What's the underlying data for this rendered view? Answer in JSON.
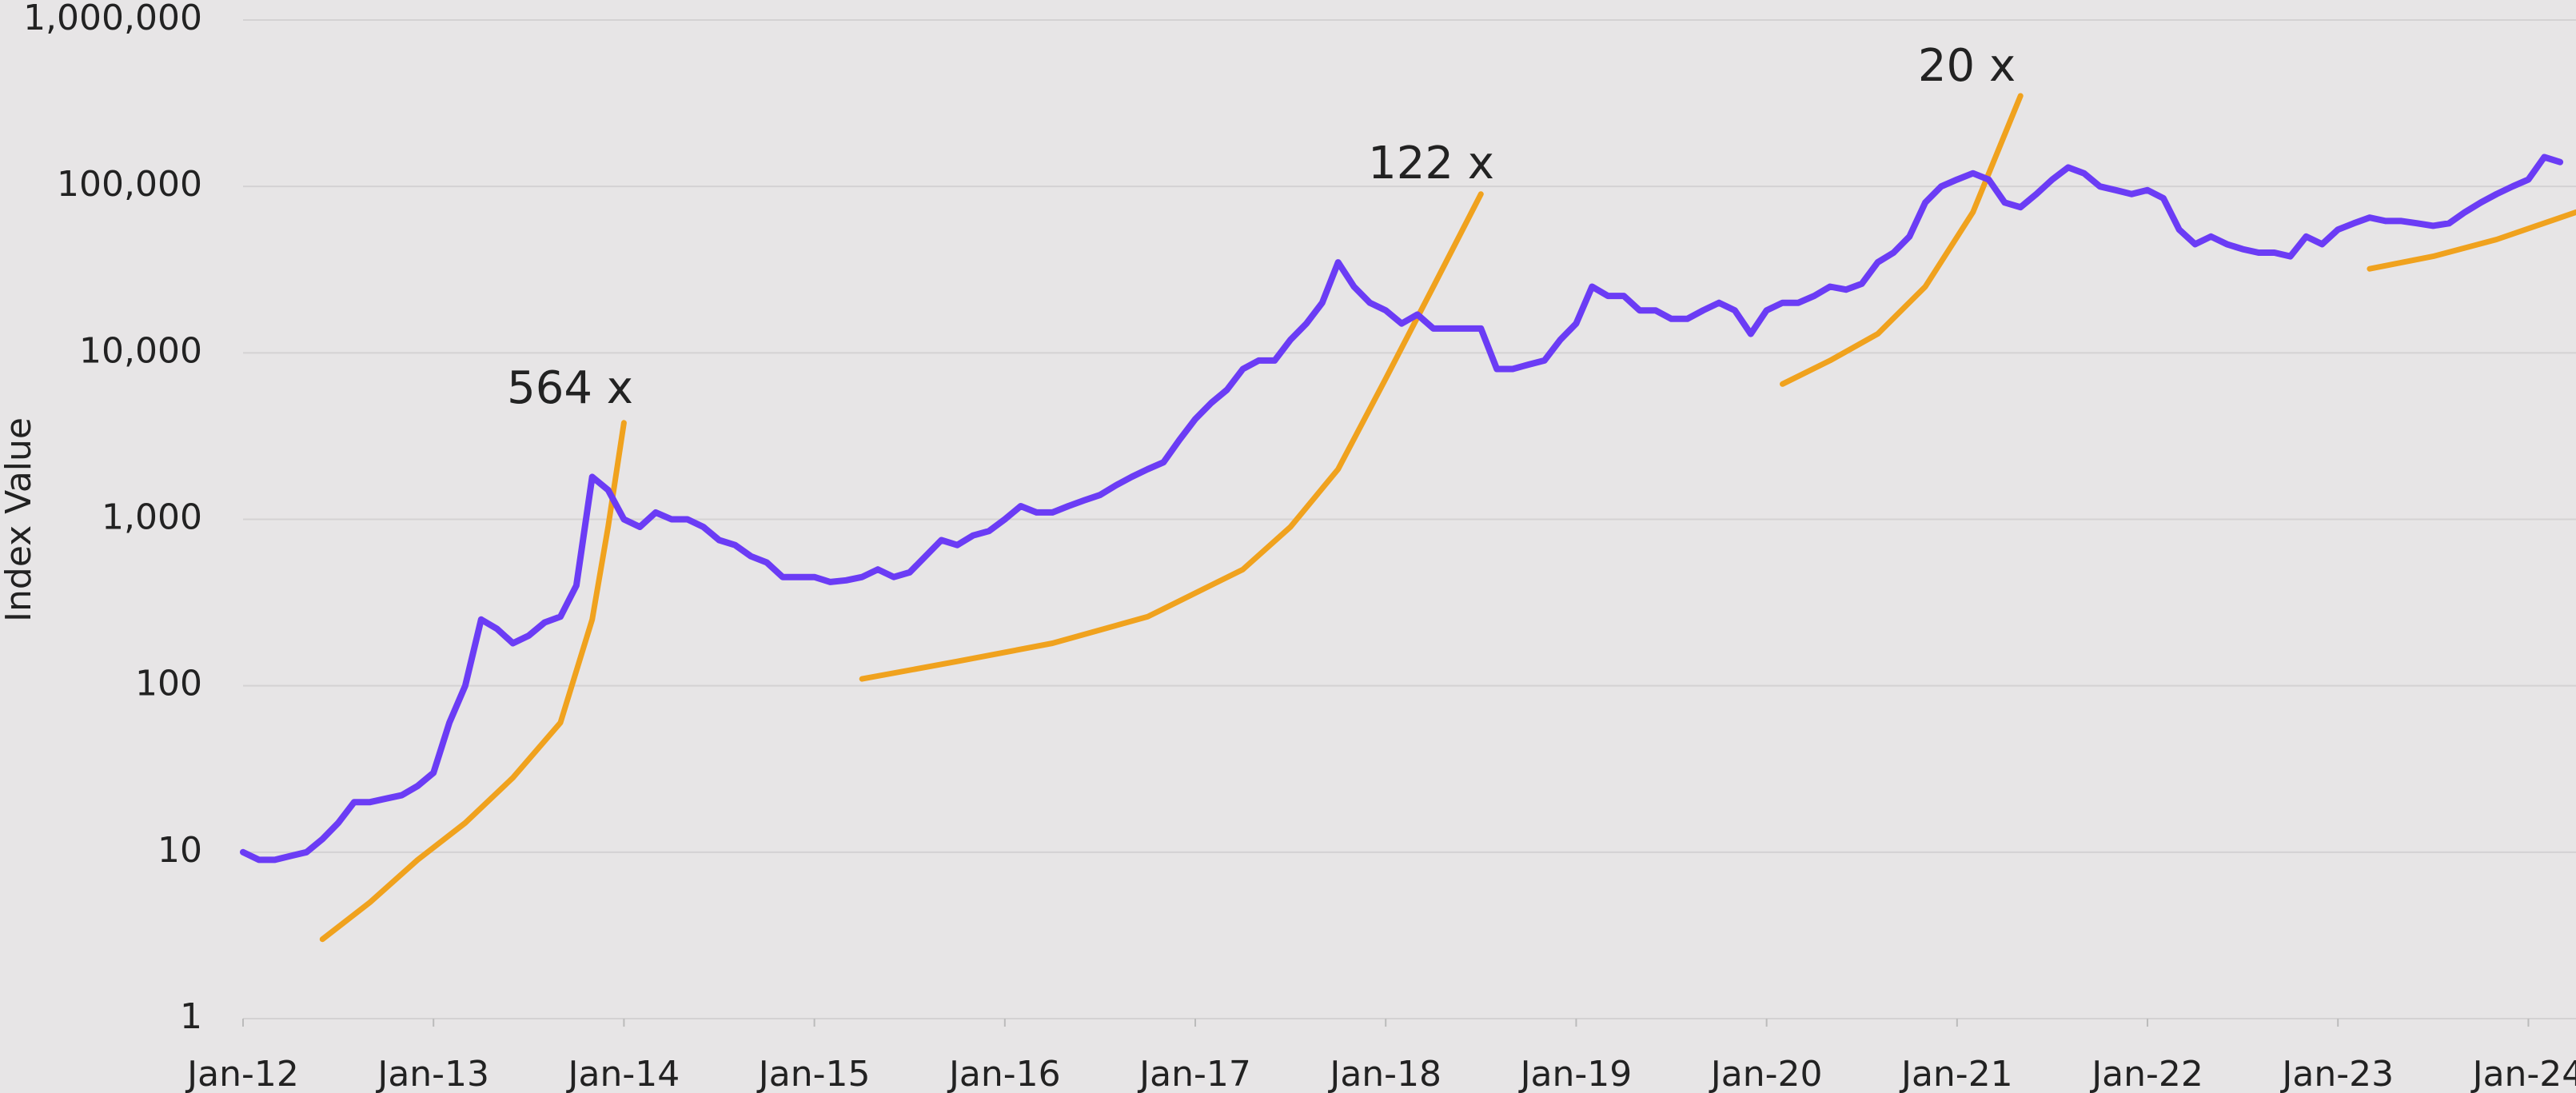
{
  "chart_data": {
    "type": "line",
    "y_label": "Index Value",
    "yscale": "log",
    "grid": true,
    "ylim": [
      1,
      1000000
    ],
    "yticks": [
      1,
      10,
      100,
      {
        "value": 1000,
        "label": "1,000"
      },
      {
        "value": 10000,
        "label": "10,000"
      },
      {
        "value": 100000,
        "label": "100,000"
      },
      {
        "value": 1000000,
        "label": "1,000,000"
      }
    ],
    "xlim": [
      "2012-01",
      "2024-04"
    ],
    "xticks": [
      {
        "value": "2012-01",
        "label": "Jan-12"
      },
      {
        "value": "2013-01",
        "label": "Jan-13"
      },
      {
        "value": "2014-01",
        "label": "Jan-14"
      },
      {
        "value": "2015-01",
        "label": "Jan-15"
      },
      {
        "value": "2016-01",
        "label": "Jan-16"
      },
      {
        "value": "2017-01",
        "label": "Jan-17"
      },
      {
        "value": "2018-01",
        "label": "Jan-18"
      },
      {
        "value": "2019-01",
        "label": "Jan-19"
      },
      {
        "value": "2020-01",
        "label": "Jan-20"
      },
      {
        "value": "2021-01",
        "label": "Jan-21"
      },
      {
        "value": "2022-01",
        "label": "Jan-22"
      },
      {
        "value": "2023-01",
        "label": "Jan-23"
      },
      {
        "value": "2024-01",
        "label": "Jan-24"
      }
    ],
    "annotations": [
      "564 x",
      "122 x",
      "20 x"
    ],
    "series": [
      {
        "color": "#6b3cf5",
        "x": [
          "2012-01",
          "2012-02",
          "2012-03",
          "2012-04",
          "2012-05",
          "2012-06",
          "2012-07",
          "2012-08",
          "2012-09",
          "2012-10",
          "2012-11",
          "2012-12",
          "2013-01",
          "2013-02",
          "2013-03",
          "2013-04",
          "2013-05",
          "2013-06",
          "2013-07",
          "2013-08",
          "2013-09",
          "2013-10",
          "2013-11",
          "2013-12",
          "2014-01",
          "2014-02",
          "2014-03",
          "2014-04",
          "2014-05",
          "2014-06",
          "2014-07",
          "2014-08",
          "2014-09",
          "2014-10",
          "2014-11",
          "2014-12",
          "2015-01",
          "2015-02",
          "2015-03",
          "2015-04",
          "2015-05",
          "2015-06",
          "2015-07",
          "2015-08",
          "2015-09",
          "2015-10",
          "2015-11",
          "2015-12",
          "2016-01",
          "2016-02",
          "2016-03",
          "2016-04",
          "2016-05",
          "2016-06",
          "2016-07",
          "2016-08",
          "2016-09",
          "2016-10",
          "2016-11",
          "2016-12",
          "2017-01",
          "2017-02",
          "2017-03",
          "2017-04",
          "2017-05",
          "2017-06",
          "2017-07",
          "2017-08",
          "2017-09",
          "2017-10",
          "2017-11",
          "2017-12",
          "2018-01",
          "2018-02",
          "2018-03",
          "2018-04",
          "2018-05",
          "2018-06",
          "2018-07",
          "2018-08",
          "2018-09",
          "2018-10",
          "2018-11",
          "2018-12",
          "2019-01",
          "2019-02",
          "2019-03",
          "2019-04",
          "2019-05",
          "2019-06",
          "2019-07",
          "2019-08",
          "2019-09",
          "2019-10",
          "2019-11",
          "2019-12",
          "2020-01",
          "2020-02",
          "2020-03",
          "2020-04",
          "2020-05",
          "2020-06",
          "2020-07",
          "2020-08",
          "2020-09",
          "2020-10",
          "2020-11",
          "2020-12",
          "2021-01",
          "2021-02",
          "2021-03",
          "2021-04",
          "2021-05",
          "2021-06",
          "2021-07",
          "2021-08",
          "2021-09",
          "2021-10",
          "2021-11",
          "2021-12",
          "2022-01",
          "2022-02",
          "2022-03",
          "2022-04",
          "2022-05",
          "2022-06",
          "2022-07",
          "2022-08",
          "2022-09",
          "2022-10",
          "2022-11",
          "2022-12",
          "2023-01",
          "2023-02",
          "2023-03",
          "2023-04",
          "2023-05",
          "2023-06",
          "2023-07",
          "2023-08",
          "2023-09",
          "2023-10",
          "2023-11",
          "2023-12",
          "2024-01",
          "2024-02",
          "2024-03"
        ],
        "values": [
          10,
          9,
          9,
          9.5,
          10,
          12,
          15,
          20,
          20,
          21,
          22,
          25,
          30,
          60,
          100,
          250,
          220,
          180,
          200,
          240,
          260,
          400,
          1800,
          1500,
          1000,
          900,
          1100,
          1000,
          1000,
          900,
          750,
          700,
          600,
          550,
          450,
          450,
          450,
          420,
          430,
          450,
          500,
          450,
          480,
          600,
          750,
          700,
          800,
          850,
          1000,
          1200,
          1100,
          1100,
          1200,
          1300,
          1400,
          1600,
          1800,
          2000,
          2200,
          3000,
          4000,
          5000,
          6000,
          8000,
          9000,
          9000,
          12000,
          15000,
          20000,
          35000,
          25000,
          20000,
          18000,
          15000,
          17000,
          14000,
          14000,
          14000,
          14000,
          8000,
          8000,
          8500,
          9000,
          12000,
          15000,
          25000,
          22000,
          22000,
          18000,
          18000,
          16000,
          16000,
          18000,
          20000,
          18000,
          13000,
          18000,
          20000,
          20000,
          22000,
          25000,
          24000,
          26000,
          35000,
          40000,
          50000,
          80000,
          100000,
          110000,
          120000,
          110000,
          80000,
          75000,
          90000,
          110000,
          130000,
          120000,
          100000,
          95000,
          90000,
          95000,
          85000,
          55000,
          45000,
          50000,
          45000,
          42000,
          40000,
          40000,
          38000,
          50000,
          45000,
          55000,
          60000,
          65000,
          62000,
          62000,
          60000,
          58000,
          60000,
          70000,
          80000,
          90000,
          100000,
          110000,
          150000,
          140000
        ]
      },
      {
        "color": "#f0a21e",
        "x": [
          "2012-06",
          "2012-09",
          "2012-12",
          "2013-03",
          "2013-06",
          "2013-09",
          "2013-11",
          "2013-12",
          "2014-01",
          "2014-06",
          "2015-04",
          "2015-10",
          "2016-04",
          "2016-10",
          "2017-04",
          "2017-07",
          "2017-10",
          "2018-01",
          "2018-04",
          "2018-07",
          "2019-06",
          "2020-02",
          "2020-05",
          "2020-08",
          "2020-11",
          "2021-02",
          "2021-05",
          "2022-06",
          "2023-03",
          "2023-07",
          "2023-11",
          "2024-04"
        ],
        "values": [
          3,
          5,
          9,
          15,
          28,
          60,
          250,
          900,
          3800,
          null,
          110,
          140,
          180,
          260,
          500,
          900,
          2000,
          7000,
          25000,
          90000,
          null,
          6500,
          9000,
          13000,
          25000,
          70000,
          350000,
          null,
          32000,
          38000,
          48000,
          70000
        ]
      }
    ]
  }
}
